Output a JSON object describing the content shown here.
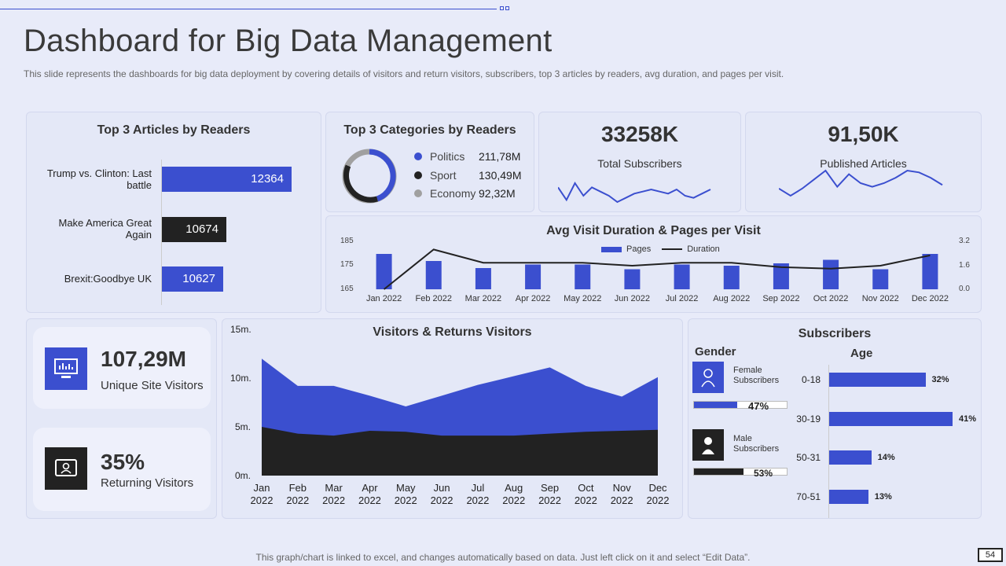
{
  "title": "Dashboard for Big Data Management",
  "subtitle": "This slide represents the dashboards for big data deployment by covering details of visitors and return visitors, subscribers, top 3 articles by readers, avg duration, and pages per visit.",
  "articles": {
    "title": "Top 3 Articles by Readers",
    "items": [
      {
        "label": "Trump vs. Clinton: Last battle",
        "value": "12364"
      },
      {
        "label": "Make America Great Again",
        "value": "10674"
      },
      {
        "label": "Brexit:Goodbye UK",
        "value": "10627"
      }
    ]
  },
  "categories": {
    "title": "Top 3 Categories by Readers",
    "items": [
      {
        "name": "Politics",
        "value": "211,78M",
        "color": "#3b4fcf"
      },
      {
        "name": "Sport",
        "value": "130,49M",
        "color": "#222222"
      },
      {
        "name": "Economy",
        "value": "92,32M",
        "color": "#a0a0a0"
      }
    ]
  },
  "kpis": {
    "subscribers": {
      "value": "33258K",
      "label": "Total Subscribers"
    },
    "articles": {
      "value": "91,50K",
      "label": "Published Articles"
    }
  },
  "avg_visit": {
    "title": "Avg Visit Duration & Pages per Visit",
    "legend_pages": "Pages",
    "legend_duration": "Duration",
    "left_ticks": [
      "185",
      "175",
      "165"
    ],
    "right_ticks": [
      "3.2",
      "1.6",
      "0.0"
    ]
  },
  "unique": {
    "value": "107,29M",
    "label": "Unique Site Visitors"
  },
  "returning": {
    "value": "35%",
    "label": "Returning Visitors"
  },
  "visitors": {
    "title": "Visitors & Returns Visitors",
    "y_ticks": [
      "15m.",
      "10m.",
      "5m.",
      "0m."
    ]
  },
  "subscribers": {
    "title": "Subscribers",
    "gender_title": "Gender",
    "age_title": "Age",
    "female": {
      "label": "Female Subscribers",
      "pct": "47%",
      "fill": 0.47
    },
    "male": {
      "label": "Male Subscribers",
      "pct": "53%",
      "fill": 0.53
    },
    "ages": [
      {
        "label": "0-18",
        "pct": "32%",
        "value": 32
      },
      {
        "label": "30-19",
        "pct": "41%",
        "value": 41
      },
      {
        "label": "50-31",
        "pct": "14%",
        "value": 14
      },
      {
        "label": "70-51",
        "pct": "13%",
        "value": 13
      }
    ]
  },
  "footer": "This graph/chart is linked to excel,  and changes automatically based on data. Just left click on it and select “Edit Data”.",
  "page_number": "54",
  "chart_data": [
    {
      "type": "bar",
      "title": "Top 3 Articles by Readers",
      "categories": [
        "Trump vs. Clinton: Last battle",
        "Make America Great Again",
        "Brexit:Goodbye UK"
      ],
      "values": [
        12364,
        10674,
        10627
      ]
    },
    {
      "type": "pie",
      "title": "Top 3 Categories by Readers",
      "categories": [
        "Politics",
        "Sport",
        "Economy"
      ],
      "values": [
        211.78,
        130.49,
        92.32
      ]
    },
    {
      "type": "line",
      "title": "Total Subscribers trend",
      "values": [
        4,
        1,
        5,
        2,
        4,
        3,
        2,
        0.5,
        1.5,
        2.5,
        3,
        3.5,
        3,
        2.5,
        3.5,
        2,
        1.5,
        2.5,
        3.5
      ]
    },
    {
      "type": "line",
      "title": "Published Articles trend",
      "values": [
        2,
        0,
        2,
        4.5,
        7,
        2.5,
        6,
        3.5,
        2.5,
        3.5,
        5,
        7,
        6.5,
        5,
        3
      ]
    },
    {
      "type": "bar",
      "title": "Avg Visit Duration & Pages per Visit",
      "categories": [
        "Jan 2022",
        "Feb 2022",
        "Mar 2022",
        "Apr 2022",
        "May 2022",
        "Jun 2022",
        "Jul 2022",
        "Aug 2022",
        "Sep 2022",
        "Oct 2022",
        "Nov 2022",
        "Dec 2022"
      ],
      "series": [
        {
          "name": "Pages",
          "axis": "left",
          "values": [
            180,
            177,
            174,
            175.5,
            175.5,
            173.5,
            175.5,
            175,
            176,
            177.5,
            173.5,
            180
          ]
        },
        {
          "name": "Duration",
          "axis": "right",
          "type": "line",
          "values": [
            0,
            2.7,
            1.8,
            1.8,
            1.8,
            1.6,
            1.8,
            1.8,
            1.5,
            1.4,
            1.6,
            2.3
          ]
        }
      ],
      "ylim": [
        165,
        185
      ],
      "y2lim": [
        0,
        3.2
      ]
    },
    {
      "type": "area",
      "title": "Visitors & Returns Visitors",
      "categories": [
        "Jan 2022",
        "Feb 2022",
        "Mar 2022",
        "Apr 2022",
        "May 2022",
        "Jun 2022",
        "Jul 2022",
        "Aug 2022",
        "Sep 2022",
        "Oct 2022",
        "Nov 2022",
        "Dec 2022"
      ],
      "series": [
        {
          "name": "Visitors",
          "values": [
            12,
            9.2,
            9.2,
            8.2,
            7.1,
            8.2,
            9.3,
            10.2,
            11.1,
            9.2,
            8.1,
            10.1
          ]
        },
        {
          "name": "Returns Visitors",
          "values": [
            5.0,
            4.3,
            4.1,
            4.6,
            4.5,
            4.1,
            4.1,
            4.1,
            4.3,
            4.5,
            4.6,
            4.7
          ]
        }
      ],
      "ylim": [
        0,
        15
      ]
    },
    {
      "type": "bar",
      "title": "Subscribers by Age",
      "categories": [
        "0-18",
        "30-19",
        "50-31",
        "70-51"
      ],
      "values": [
        32,
        41,
        14,
        13
      ]
    }
  ]
}
